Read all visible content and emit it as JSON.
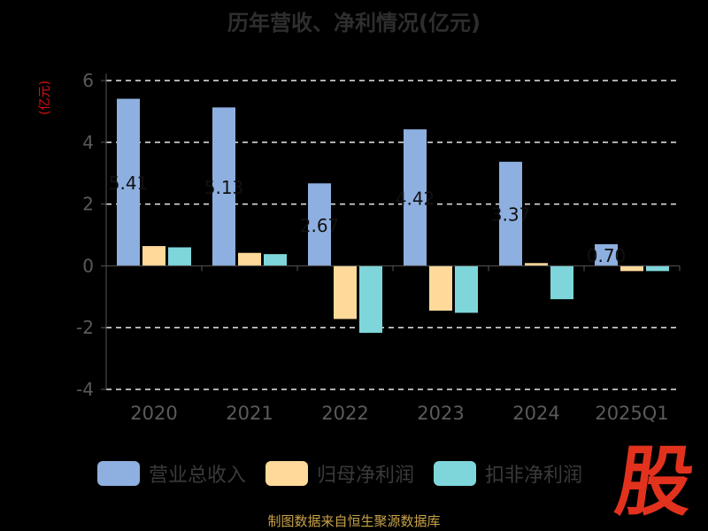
{
  "title": "历年营收、净利情况(亿元)",
  "unit_label": "(亿元)",
  "legend": {
    "items": [
      {
        "label": "营业总收入",
        "color": "#8eb0e0"
      },
      {
        "label": "归母净利润",
        "color": "#ffd99a"
      },
      {
        "label": "扣非净利润",
        "color": "#7ed6da"
      }
    ]
  },
  "footer": "制图数据来自恒生聚源数据库",
  "logo_text": "股",
  "chart_data": {
    "type": "bar",
    "title": "历年营收、净利情况(亿元)",
    "ylabel": "(亿元)",
    "xlabel": "",
    "categories": [
      "2020",
      "2021",
      "2022",
      "2023",
      "2024",
      "2025Q1"
    ],
    "ylim": [
      -4,
      6
    ],
    "yticks": [
      -4,
      -2,
      0,
      2,
      4,
      6
    ],
    "grid": true,
    "legend_position": "bottom",
    "series": [
      {
        "name": "营业总收入",
        "color": "#8eb0e0",
        "values": [
          5.41,
          5.13,
          2.67,
          4.42,
          3.37,
          0.7
        ],
        "data_labels": [
          "5.41",
          "5.13",
          "2.67",
          "4.42",
          "3.37",
          "0.70"
        ]
      },
      {
        "name": "归母净利润",
        "color": "#ffd99a",
        "values": [
          0.64,
          0.42,
          -1.72,
          -1.45,
          0.09,
          -0.17
        ]
      },
      {
        "name": "扣非净利润",
        "color": "#7ed6da",
        "values": [
          0.6,
          0.38,
          -2.17,
          -1.52,
          -1.08,
          -0.17
        ]
      }
    ]
  }
}
